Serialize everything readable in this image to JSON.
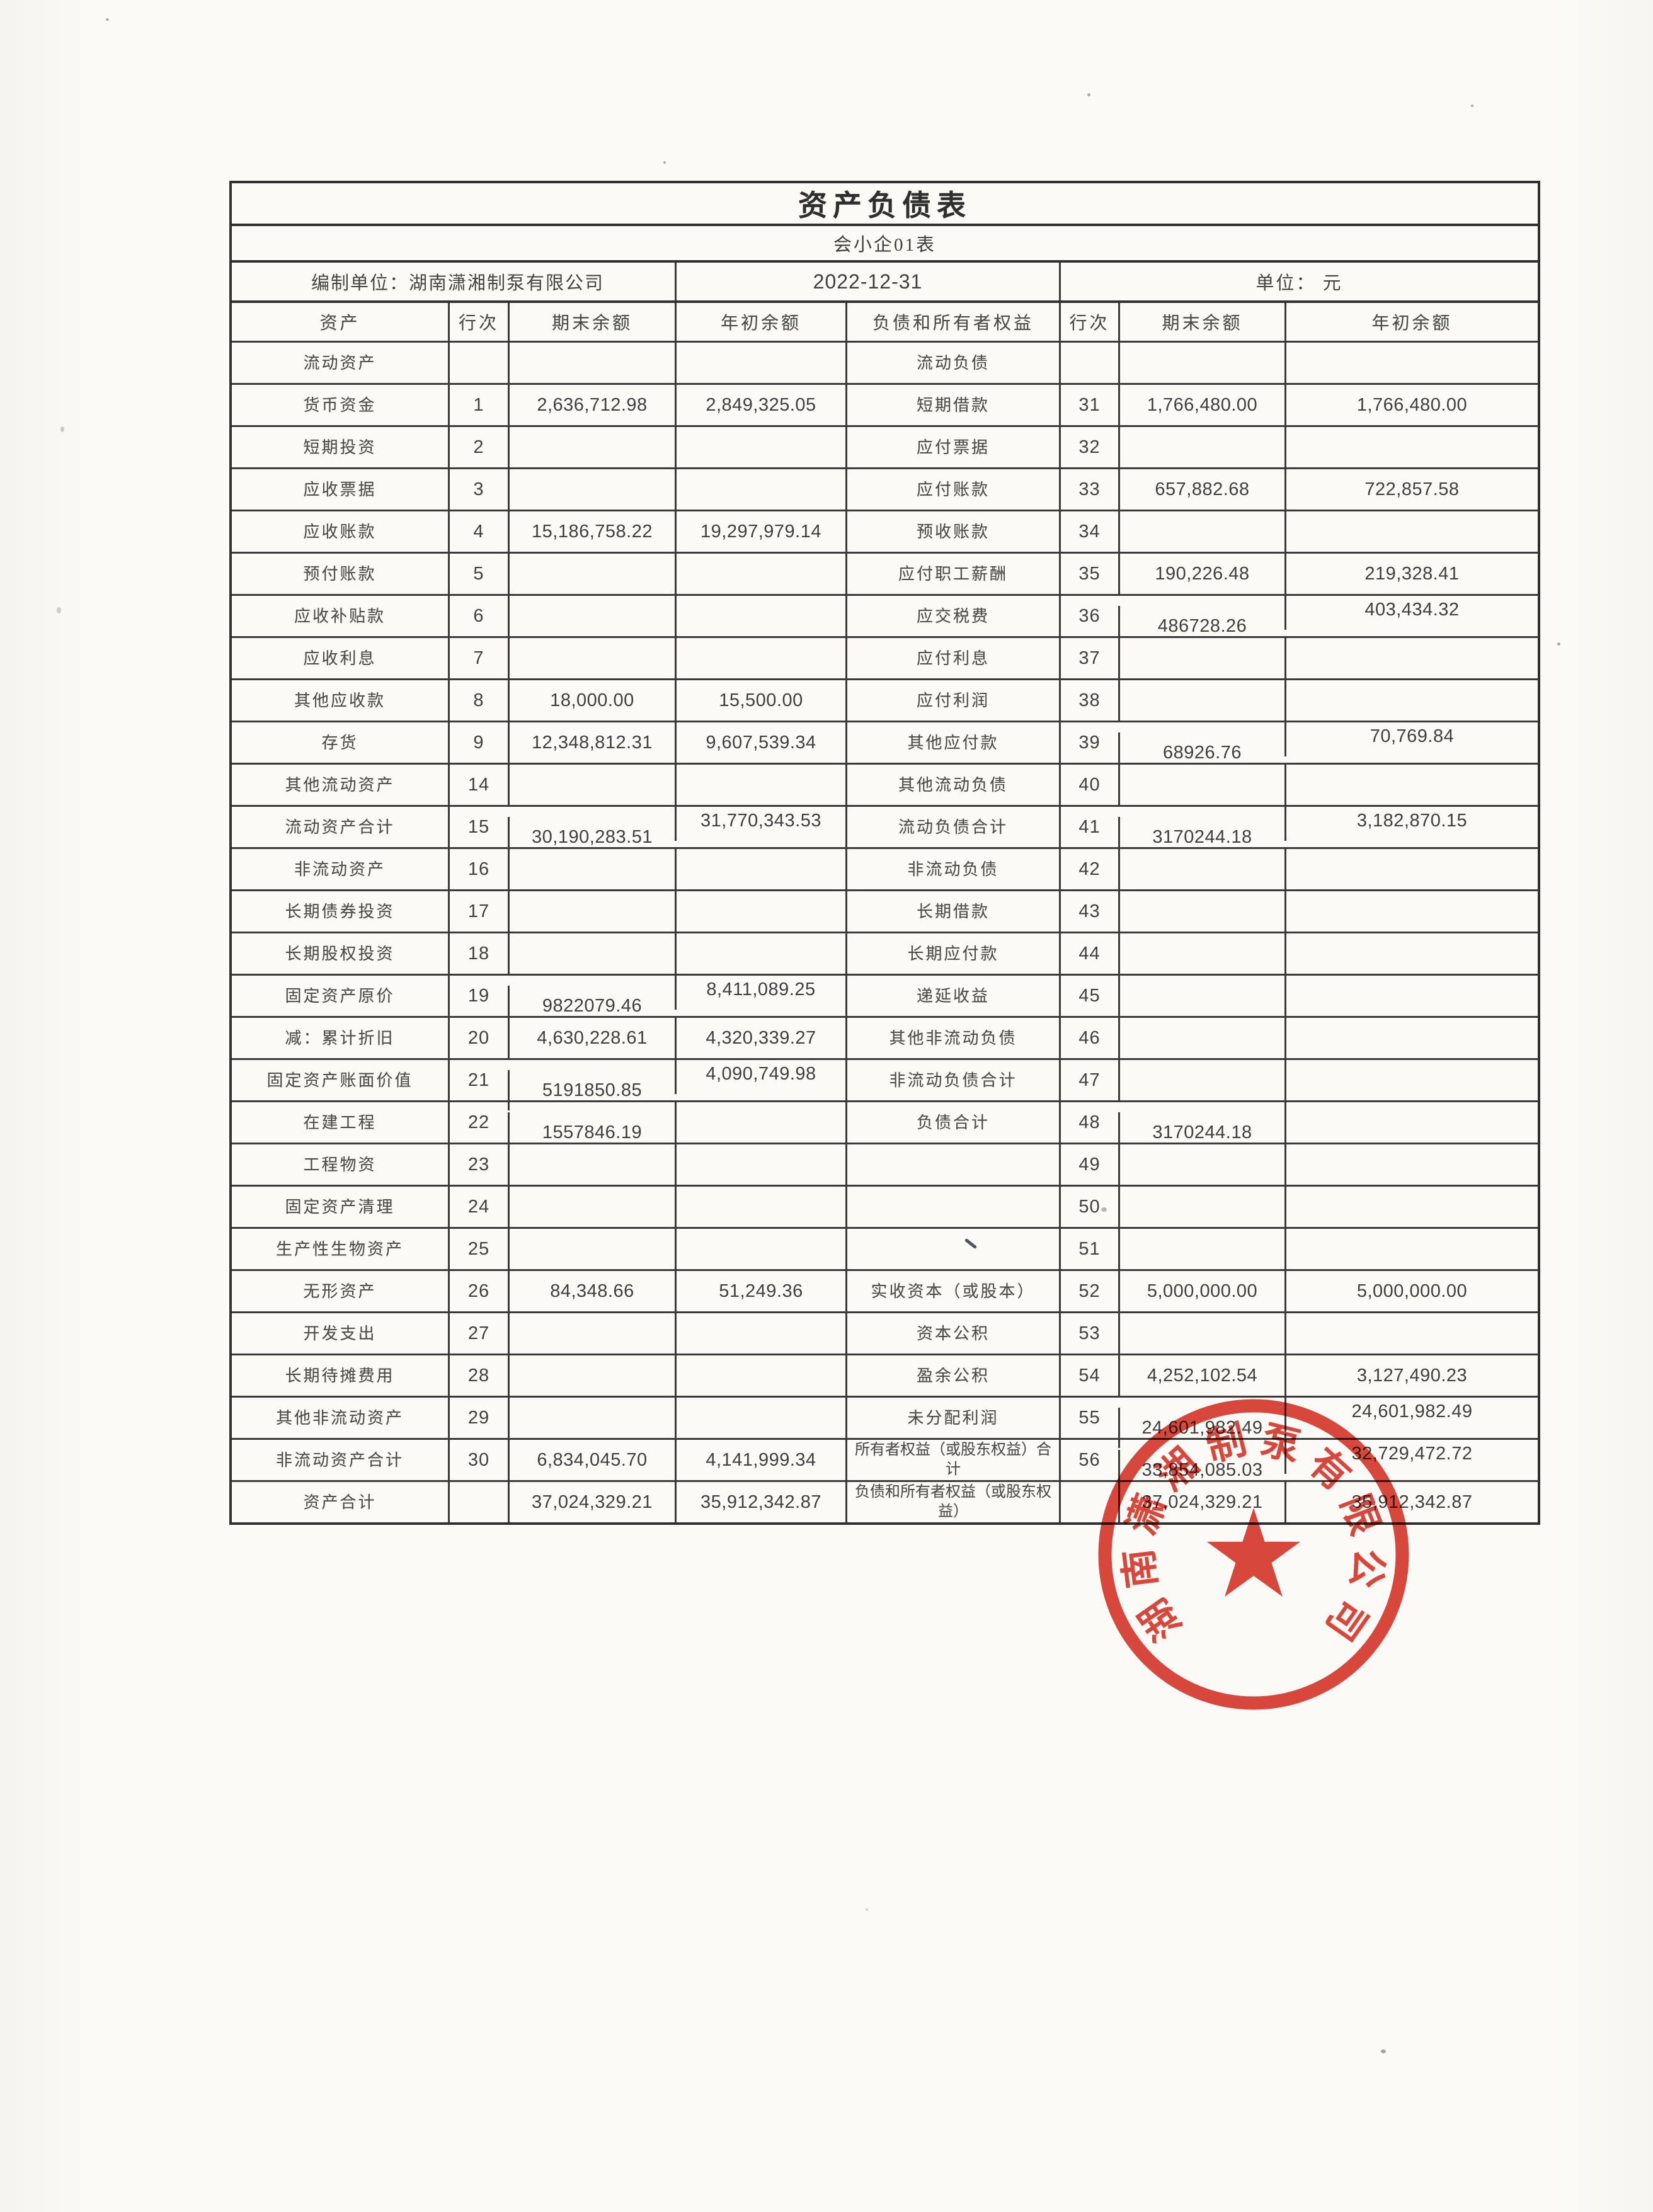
{
  "header": {
    "title": "资产负债表",
    "form_code": "会小企01表",
    "prepared_by": "编制单位：湖南潇湘制泵有限公司",
    "date": "2022-12-31",
    "unit": "单位： 元"
  },
  "columns": [
    "资产",
    "行次",
    "期末余额",
    "年初余额",
    "负债和所有者权益",
    "行次",
    "期末余额",
    "年初余额"
  ],
  "rows": [
    {
      "l": [
        "流动资产",
        "",
        "",
        ""
      ],
      "lf": [
        0,
        0,
        0,
        0
      ],
      "r": [
        "流动负债",
        "",
        "",
        ""
      ],
      "rf": [
        0,
        0,
        0,
        0
      ]
    },
    {
      "l": [
        "货币资金",
        "1",
        "2,636,712.98",
        "2,849,325.05"
      ],
      "lf": [
        0,
        0,
        0,
        0
      ],
      "r": [
        "短期借款",
        "31",
        "1,766,480.00",
        "1,766,480.00"
      ],
      "rf": [
        0,
        0,
        0,
        0
      ]
    },
    {
      "l": [
        "短期投资",
        "2",
        "",
        ""
      ],
      "lf": [
        0,
        0,
        0,
        0
      ],
      "r": [
        "应付票据",
        "32",
        "",
        ""
      ],
      "rf": [
        0,
        0,
        0,
        0
      ]
    },
    {
      "l": [
        "应收票据",
        "3",
        "",
        ""
      ],
      "lf": [
        0,
        0,
        0,
        0
      ],
      "r": [
        "应付账款",
        "33",
        "657,882.68",
        "722,857.58"
      ],
      "rf": [
        0,
        0,
        0,
        0
      ]
    },
    {
      "l": [
        "应收账款",
        "4",
        "15,186,758.22",
        "19,297,979.14"
      ],
      "lf": [
        0,
        0,
        0,
        0
      ],
      "r": [
        "预收账款",
        "34",
        "",
        ""
      ],
      "rf": [
        0,
        0,
        0,
        0
      ]
    },
    {
      "l": [
        "预付账款",
        "5",
        "",
        ""
      ],
      "lf": [
        0,
        0,
        0,
        0
      ],
      "r": [
        "应付职工薪酬",
        "35",
        "190,226.48",
        "219,328.41"
      ],
      "rf": [
        0,
        0,
        0,
        0
      ]
    },
    {
      "l": [
        "应收补贴款",
        "6",
        "",
        ""
      ],
      "lf": [
        0,
        0,
        0,
        0
      ],
      "r": [
        "应交税费",
        "36",
        "486728.26",
        "403,434.32"
      ],
      "rf": [
        0,
        0,
        1,
        2
      ]
    },
    {
      "l": [
        "应收利息",
        "7",
        "",
        ""
      ],
      "lf": [
        0,
        0,
        0,
        0
      ],
      "r": [
        "应付利息",
        "37",
        "",
        ""
      ],
      "rf": [
        0,
        0,
        0,
        0
      ]
    },
    {
      "l": [
        "其他应收款",
        "8",
        "18,000.00",
        "15,500.00"
      ],
      "lf": [
        0,
        0,
        0,
        0
      ],
      "r": [
        "应付利润",
        "38",
        "",
        ""
      ],
      "rf": [
        0,
        0,
        0,
        0
      ]
    },
    {
      "l": [
        "存货",
        "9",
        "12,348,812.31",
        "9,607,539.34"
      ],
      "lf": [
        0,
        0,
        0,
        0
      ],
      "r": [
        "其他应付款",
        "39",
        "68926.76",
        "70,769.84"
      ],
      "rf": [
        0,
        0,
        1,
        2
      ]
    },
    {
      "l": [
        "其他流动资产",
        "14",
        "",
        ""
      ],
      "lf": [
        0,
        0,
        0,
        0
      ],
      "r": [
        "其他流动负债",
        "40",
        "",
        ""
      ],
      "rf": [
        0,
        0,
        0,
        0
      ]
    },
    {
      "l": [
        "流动资产合计",
        "15",
        "30,190,283.51",
        "31,770,343.53"
      ],
      "lf": [
        0,
        0,
        1,
        2
      ],
      "r": [
        "流动负债合计",
        "41",
        "3170244.18",
        "3,182,870.15"
      ],
      "rf": [
        0,
        0,
        1,
        2
      ]
    },
    {
      "l": [
        "非流动资产",
        "16",
        "",
        ""
      ],
      "lf": [
        0,
        0,
        0,
        0
      ],
      "r": [
        "非流动负债",
        "42",
        "",
        ""
      ],
      "rf": [
        0,
        0,
        0,
        0
      ]
    },
    {
      "l": [
        "长期债券投资",
        "17",
        "",
        ""
      ],
      "lf": [
        0,
        0,
        0,
        0
      ],
      "r": [
        "长期借款",
        "43",
        "",
        ""
      ],
      "rf": [
        0,
        0,
        0,
        0
      ]
    },
    {
      "l": [
        "长期股权投资",
        "18",
        "",
        ""
      ],
      "lf": [
        0,
        0,
        0,
        0
      ],
      "r": [
        "长期应付款",
        "44",
        "",
        ""
      ],
      "rf": [
        0,
        0,
        0,
        0
      ]
    },
    {
      "l": [
        "固定资产原价",
        "19",
        "9822079.46",
        "8,411,089.25"
      ],
      "lf": [
        0,
        0,
        1,
        2
      ],
      "r": [
        "递延收益",
        "45",
        "",
        ""
      ],
      "rf": [
        0,
        0,
        0,
        0
      ]
    },
    {
      "l": [
        "减：累计折旧",
        "20",
        "4,630,228.61",
        "4,320,339.27"
      ],
      "lf": [
        0,
        0,
        0,
        0
      ],
      "r": [
        "其他非流动负债",
        "46",
        "",
        ""
      ],
      "rf": [
        0,
        0,
        0,
        0
      ]
    },
    {
      "l": [
        "固定资产账面价值",
        "21",
        "5191850.85",
        "4,090,749.98"
      ],
      "lf": [
        0,
        0,
        1,
        2
      ],
      "r": [
        "非流动负债合计",
        "47",
        "",
        ""
      ],
      "rf": [
        0,
        0,
        0,
        0
      ]
    },
    {
      "l": [
        "在建工程",
        "22",
        "1557846.19",
        ""
      ],
      "lf": [
        0,
        0,
        1,
        0
      ],
      "r": [
        "负债合计",
        "48",
        "3170244.18",
        ""
      ],
      "rf": [
        0,
        0,
        1,
        0
      ]
    },
    {
      "l": [
        "工程物资",
        "23",
        "",
        ""
      ],
      "lf": [
        0,
        0,
        0,
        0
      ],
      "r": [
        "",
        "49",
        "",
        ""
      ],
      "rf": [
        0,
        0,
        0,
        0
      ]
    },
    {
      "l": [
        "固定资产清理",
        "24",
        "",
        ""
      ],
      "lf": [
        0,
        0,
        0,
        0
      ],
      "r": [
        "",
        "50",
        "",
        ""
      ],
      "rf": [
        0,
        0,
        0,
        0
      ]
    },
    {
      "l": [
        "生产性生物资产",
        "25",
        "",
        ""
      ],
      "lf": [
        0,
        0,
        0,
        0
      ],
      "r": [
        "",
        "51",
        "",
        ""
      ],
      "rf": [
        0,
        0,
        0,
        0
      ]
    },
    {
      "l": [
        "无形资产",
        "26",
        "84,348.66",
        "51,249.36"
      ],
      "lf": [
        0,
        0,
        0,
        0
      ],
      "r": [
        "实收资本（或股本）",
        "52",
        "5,000,000.00",
        "5,000,000.00"
      ],
      "rf": [
        0,
        0,
        0,
        0
      ]
    },
    {
      "l": [
        "开发支出",
        "27",
        "",
        ""
      ],
      "lf": [
        0,
        0,
        0,
        0
      ],
      "r": [
        "资本公积",
        "53",
        "",
        ""
      ],
      "rf": [
        0,
        0,
        0,
        0
      ]
    },
    {
      "l": [
        "长期待摊费用",
        "28",
        "",
        ""
      ],
      "lf": [
        0,
        0,
        0,
        0
      ],
      "r": [
        "盈余公积",
        "54",
        "4,252,102.54",
        "3,127,490.23"
      ],
      "rf": [
        0,
        0,
        0,
        0
      ]
    },
    {
      "l": [
        "其他非流动资产",
        "29",
        "",
        ""
      ],
      "lf": [
        0,
        0,
        0,
        0
      ],
      "r": [
        "未分配利润",
        "55",
        "24,601,982.49",
        "24,601,982.49"
      ],
      "rf": [
        0,
        0,
        1,
        2
      ]
    },
    {
      "l": [
        "非流动资产合计",
        "30",
        "6,834,045.70",
        "4,141,999.34"
      ],
      "lf": [
        0,
        0,
        0,
        0
      ],
      "r": [
        "所有者权益（或股东权益）合计",
        "56",
        "33,854,085.03",
        "32,729,472.72"
      ],
      "rf": [
        0,
        0,
        1,
        2
      ]
    },
    {
      "l": [
        "资产合计",
        "",
        "37,024,329.21",
        "35,912,342.87"
      ],
      "lf": [
        0,
        0,
        0,
        0
      ],
      "r": [
        "负债和所有者权益（或股东权益）",
        "",
        "37,024,329.21",
        "35,912,342.87"
      ],
      "rf": [
        0,
        0,
        0,
        0
      ]
    }
  ],
  "stamp": {
    "text": "湖南潇湘制泵有限公司",
    "color": "#d93428"
  }
}
